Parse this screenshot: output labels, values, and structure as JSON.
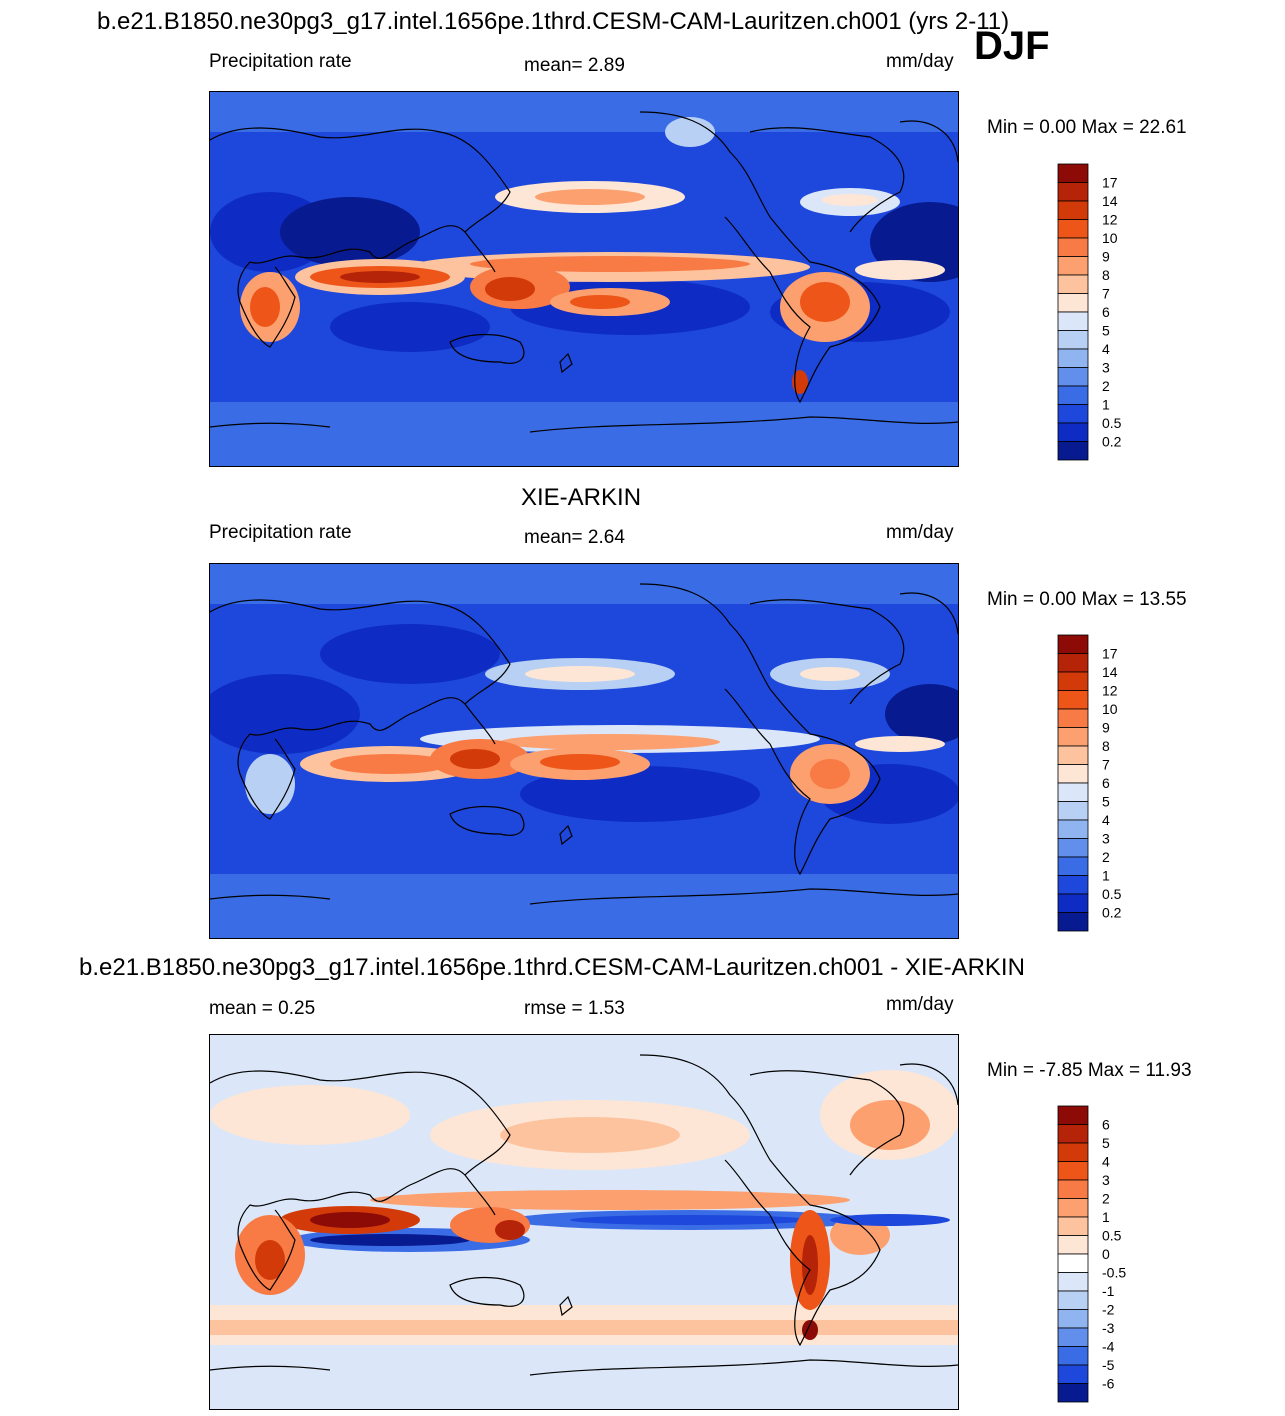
{
  "season": "DJF",
  "panels": [
    {
      "id": "model",
      "title": "b.e21.B1850.ne30pg3_g17.intel.1656pe.1thrd.CESM-CAM-Lauritzen.ch001 (yrs 2-11)",
      "left_label": "Precipitation rate",
      "center_label": "mean=   2.89",
      "units": "mm/day",
      "minmax": "Min =    0.00 Max =  22.61",
      "colorbar_labels": [
        "17",
        "14",
        "12",
        "10",
        "9",
        "8",
        "7",
        "6",
        "5",
        "4",
        "3",
        "2",
        "1",
        "0.5",
        "0.2"
      ],
      "colorbar_colors": [
        "#8c0b06",
        "#b52408",
        "#d33a09",
        "#ee5518",
        "#f87a44",
        "#fca06f",
        "#fdc39e",
        "#fde6d5",
        "#dbe7f8",
        "#b7d0f4",
        "#8fb4ef",
        "#628feb",
        "#3a6ce6",
        "#1e48dc",
        "#0e2cc4",
        "#071a90"
      ]
    },
    {
      "id": "obs",
      "title": "XIE-ARKIN",
      "left_label": "Precipitation rate",
      "center_label": "mean=   2.64",
      "units": "mm/day",
      "minmax": "Min =    0.00 Max =  13.55",
      "colorbar_labels": [
        "17",
        "14",
        "12",
        "10",
        "9",
        "8",
        "7",
        "6",
        "5",
        "4",
        "3",
        "2",
        "1",
        "0.5",
        "0.2"
      ],
      "colorbar_colors": [
        "#8c0b06",
        "#b52408",
        "#d33a09",
        "#ee5518",
        "#f87a44",
        "#fca06f",
        "#fdc39e",
        "#fde6d5",
        "#dbe7f8",
        "#b7d0f4",
        "#8fb4ef",
        "#628feb",
        "#3a6ce6",
        "#1e48dc",
        "#0e2cc4",
        "#071a90"
      ]
    },
    {
      "id": "diff",
      "title": "b.e21.B1850.ne30pg3_g17.intel.1656pe.1thrd.CESM-CAM-Lauritzen.ch001 - XIE-ARKIN",
      "left_label": "mean =    0.25",
      "center_label": "rmse =    1.53",
      "units": "mm/day",
      "minmax": "Min =  -7.85 Max =  11.93",
      "colorbar_labels": [
        "6",
        "5",
        "4",
        "3",
        "2",
        "1",
        "0.5",
        "0",
        "-0.5",
        "-1",
        "-2",
        "-3",
        "-4",
        "-5",
        "-6"
      ],
      "colorbar_colors": [
        "#8c0b06",
        "#b52408",
        "#d33a09",
        "#ee5518",
        "#f87a44",
        "#fca06f",
        "#fdc39e",
        "#fde6d5",
        "#ffffff",
        "#dbe7f8",
        "#b7d0f4",
        "#8fb4ef",
        "#628feb",
        "#3a6ce6",
        "#1e48dc",
        "#071a90"
      ]
    }
  ]
}
